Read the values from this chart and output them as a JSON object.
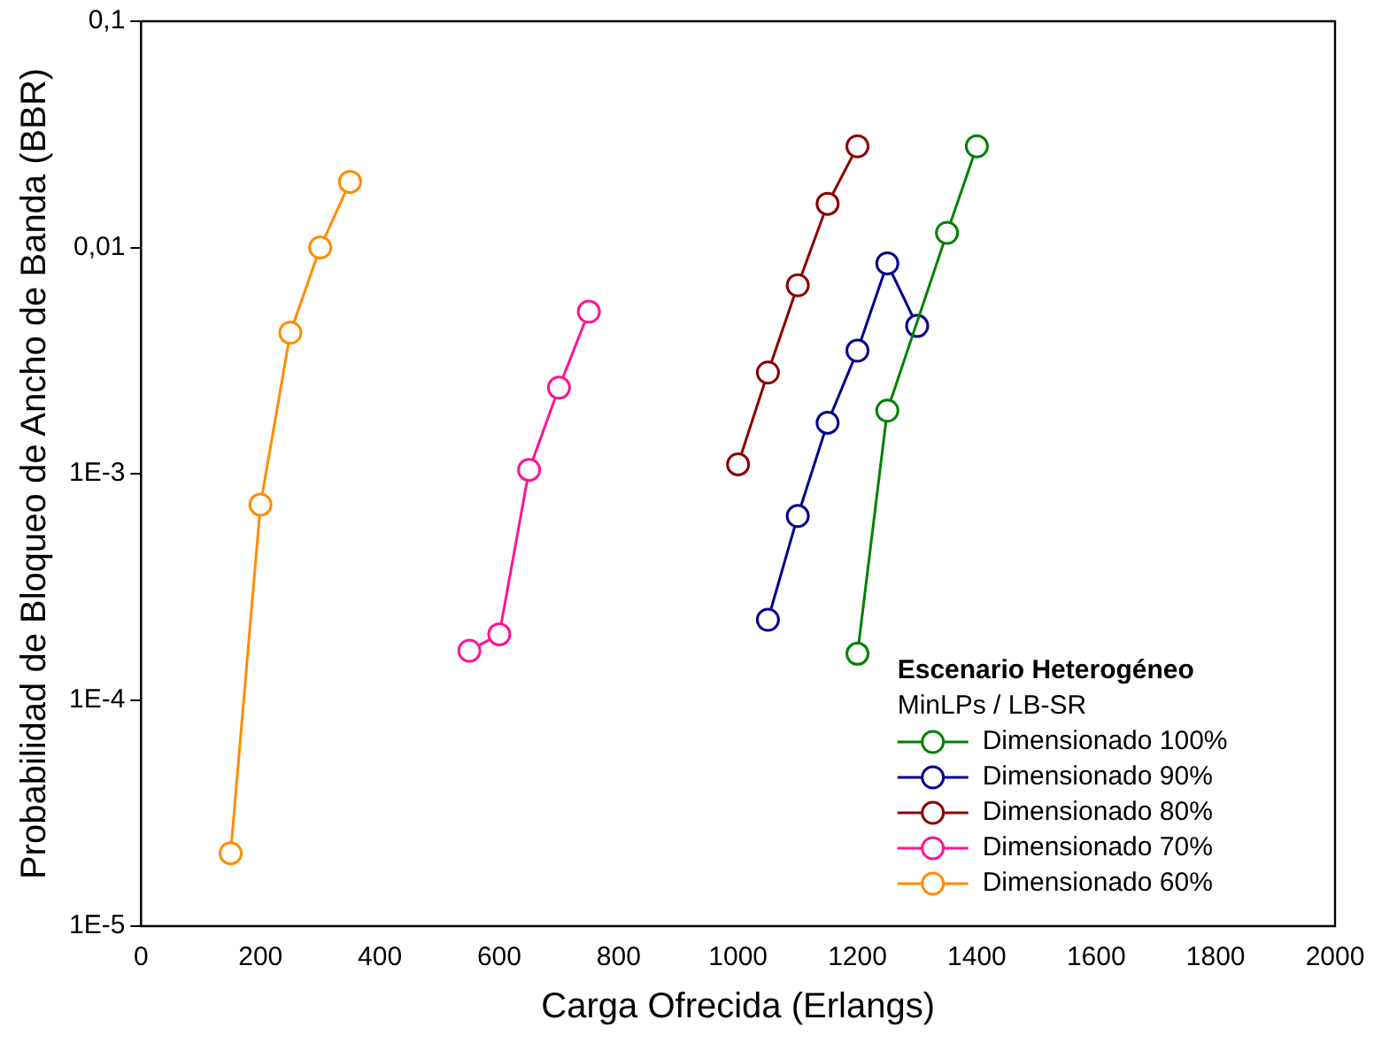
{
  "chart_data": {
    "type": "line",
    "xlabel": "Carga Ofrecida (Erlangs)",
    "ylabel": "Probabilidad de Bloqueo de Ancho de Banda (BBR)",
    "legend_title": "Escenario Heterogéneo",
    "annotations": [
      "MinLPs / LB-SR"
    ],
    "log": "y",
    "xlim": [
      0,
      2000
    ],
    "xticks": [
      0,
      200,
      400,
      600,
      800,
      1000,
      1200,
      1400,
      1600,
      1800,
      2000
    ],
    "ylim": [
      1e-05,
      0.1
    ],
    "yticks": [
      {
        "value": 1e-05,
        "label": "1E-5"
      },
      {
        "value": 0.0001,
        "label": "1E-4"
      },
      {
        "value": 0.001,
        "label": "1E-3"
      },
      {
        "value": 0.01,
        "label": "0,01"
      },
      {
        "value": 0.1,
        "label": "0,1"
      }
    ],
    "grid": false,
    "legend": "bottom right",
    "marker": "circle",
    "line_style": "solid",
    "series": [
      {
        "name": "Dimensionado 100%",
        "color": "#008000",
        "x": [
          1200,
          1250,
          1350,
          1400
        ],
        "values": [
          0.00016,
          0.0019,
          0.0116,
          0.028
        ]
      },
      {
        "name": "Dimensionado 90%",
        "color": "#00008b",
        "x": [
          1050,
          1100,
          1150,
          1200,
          1250,
          1300
        ],
        "values": [
          0.000226,
          0.00065,
          0.00168,
          0.0035,
          0.0085,
          0.0045
        ]
      },
      {
        "name": "Dimensionado 80%",
        "color": "#8b0000",
        "x": [
          1000,
          1050,
          1100,
          1150,
          1200
        ],
        "values": [
          0.0011,
          0.0028,
          0.0068,
          0.0156,
          0.028
        ]
      },
      {
        "name": "Dimensionado 70%",
        "color": "#ff1493",
        "x": [
          550,
          600,
          650,
          700,
          750
        ],
        "values": [
          0.000165,
          0.000195,
          0.00104,
          0.0024,
          0.0052
        ]
      },
      {
        "name": "Dimensionado 60%",
        "color": "#ff8c00",
        "x": [
          150,
          200,
          250,
          300,
          350
        ],
        "values": [
          2.1e-05,
          0.00073,
          0.0042,
          0.01,
          0.0195
        ]
      }
    ]
  }
}
